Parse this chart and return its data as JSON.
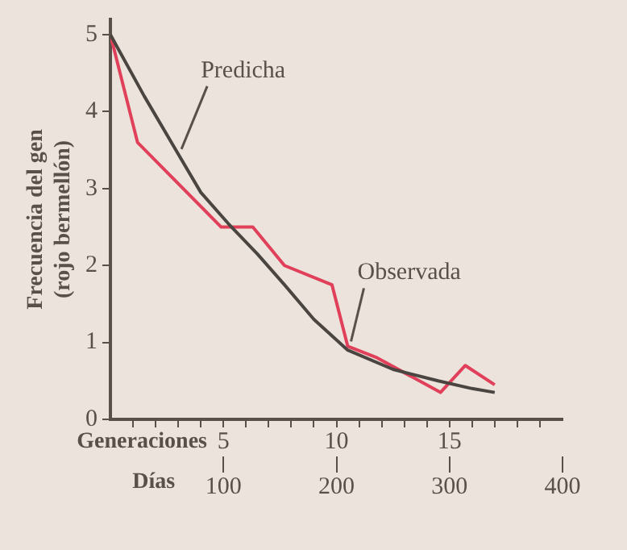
{
  "chart_data": {
    "type": "line",
    "xlabel": "Generaciones",
    "x2label": "Días",
    "ylabel": "Frecuencia del gen\n(rojo bermellón)",
    "xlim": [
      0,
      20
    ],
    "xticks": [
      {
        "value": 1,
        "label": null
      },
      {
        "value": 2,
        "label": null
      },
      {
        "value": 3,
        "label": null
      },
      {
        "value": 4,
        "label": null
      },
      5,
      {
        "value": 6,
        "label": null
      },
      {
        "value": 7,
        "label": null
      },
      {
        "value": 8,
        "label": null
      },
      {
        "value": 9,
        "label": null
      },
      10,
      {
        "value": 11,
        "label": null
      },
      {
        "value": 12,
        "label": null
      },
      {
        "value": 13,
        "label": null
      },
      {
        "value": 14,
        "label": null
      },
      15,
      {
        "value": 16,
        "label": null
      },
      {
        "value": 17,
        "label": null
      },
      {
        "value": 18,
        "label": null
      },
      {
        "value": 19,
        "label": null
      }
    ],
    "x2lim": [
      0,
      400
    ],
    "x2ticks": [
      100,
      200,
      300,
      400
    ],
    "ylim": [
      0,
      5.2
    ],
    "yticks": [
      0,
      1,
      2,
      3,
      4,
      5
    ],
    "grid": false,
    "legend": false,
    "marker": "none",
    "line_style": "solid",
    "series": [
      {
        "name": "Predicha",
        "color": "#4a4540",
        "x": [
          0,
          1.5,
          3,
          4,
          5.2,
          6.5,
          7.7,
          9,
          10.5,
          12.5,
          14.5,
          16,
          17
        ],
        "values": [
          5,
          4.2,
          3.45,
          2.95,
          2.55,
          2.15,
          1.75,
          1.3,
          0.9,
          0.65,
          0.5,
          0.4,
          0.35
        ]
      },
      {
        "name": "Observada",
        "color": "#e0405a",
        "x": [
          0,
          1.2,
          4.9,
          6.3,
          7.7,
          9.8,
          10.5,
          11.8,
          14.6,
          15.7,
          17
        ],
        "values": [
          5,
          3.6,
          2.5,
          2.5,
          2.0,
          1.75,
          0.95,
          0.8,
          0.35,
          0.7,
          0.45
        ]
      }
    ]
  }
}
